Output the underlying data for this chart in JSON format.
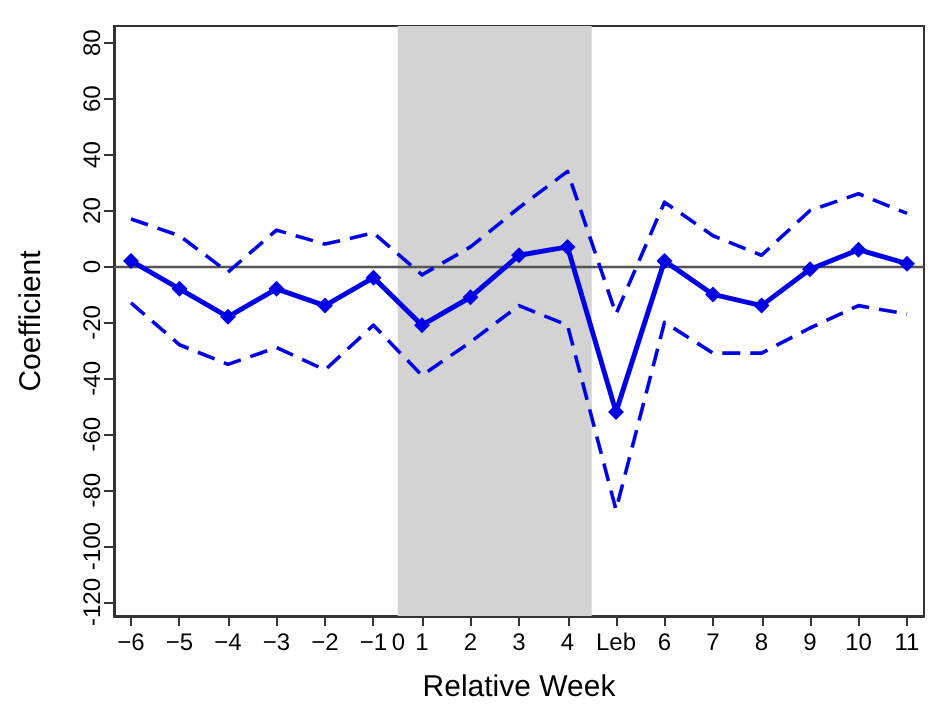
{
  "chart_data": {
    "type": "line",
    "xlabel": "Relative Week",
    "ylabel": "Coefficient",
    "categories": [
      "−6",
      "−5",
      "−4",
      "−3",
      "−2",
      "−1",
      "1",
      "2",
      "3",
      "4",
      "Leb",
      "6",
      "7",
      "8",
      "9",
      "10",
      "11"
    ],
    "series": [
      {
        "color": "#0000e6",
        "marker": "diamond",
        "line_style": "solid",
        "values": [
          2,
          -8,
          -18,
          -8,
          -14,
          -4,
          -21,
          -11,
          4,
          7,
          -52,
          2,
          -10,
          -14,
          -1,
          6,
          1
        ]
      },
      {
        "color": "#0000e6",
        "marker": "none",
        "line_style": "dashed",
        "values": [
          17,
          11,
          -2,
          13,
          8,
          12,
          -3,
          7,
          21,
          34,
          -17,
          23,
          11,
          4,
          20,
          26,
          19
        ]
      },
      {
        "color": "#0000e6",
        "marker": "none",
        "line_style": "dashed",
        "values": [
          -13,
          -28,
          -35,
          -29,
          -37,
          -21,
          -39,
          -27,
          -14,
          -21,
          -87,
          -20,
          -31,
          -31,
          -22,
          -14,
          -17
        ]
      }
    ],
    "ylim": [
      -125,
      86
    ],
    "yticks": [
      -120,
      -100,
      -80,
      -60,
      -40,
      -20,
      0,
      20,
      40,
      60,
      80
    ],
    "ref_lines": [
      {
        "axis": "y",
        "value": 0,
        "color": "#555555"
      }
    ],
    "bands": [
      {
        "axis": "x",
        "from": "−1",
        "to": "4",
        "color": "#d3d3d3"
      }
    ],
    "annotations": [
      "0"
    ],
    "grid": false
  }
}
